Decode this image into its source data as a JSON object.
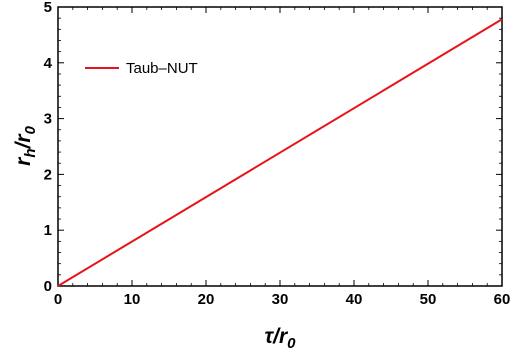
{
  "chart_data": {
    "type": "line",
    "x_axis": {
      "label": {
        "main": "τ",
        "sep": "/",
        "var": "r",
        "sub": "0"
      },
      "range": [
        0,
        60
      ],
      "ticks": [
        0,
        10,
        20,
        30,
        40,
        50,
        60
      ],
      "tick_labels": [
        "0",
        "10",
        "20",
        "30",
        "40",
        "50",
        "60"
      ]
    },
    "y_axis": {
      "label": {
        "main": "r",
        "main_sub": "h",
        "sep": "/",
        "var": "r",
        "sub": "0"
      },
      "range": [
        0,
        5
      ],
      "ticks": [
        0,
        1,
        2,
        3,
        4,
        5
      ],
      "tick_labels": [
        "0",
        "1",
        "2",
        "3",
        "4",
        "5"
      ]
    },
    "series": [
      {
        "name": "Taub–NUT",
        "color": "#e8141b",
        "x": [
          0,
          60
        ],
        "y": [
          0,
          4.78
        ]
      }
    ],
    "legend": {
      "placement": "top-left"
    },
    "grid": false
  }
}
